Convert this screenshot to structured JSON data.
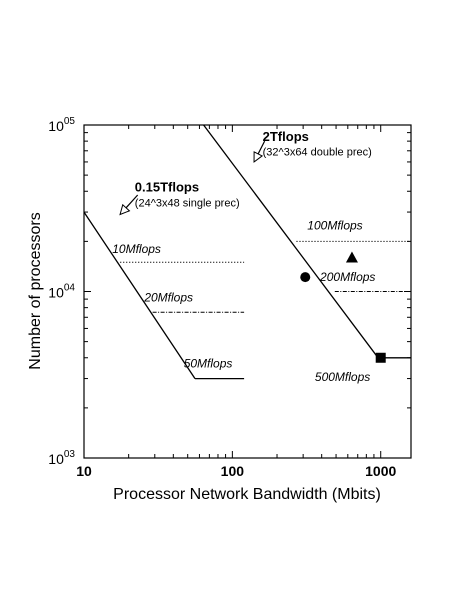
{
  "chart_data": {
    "type": "line",
    "x_scale": "log",
    "y_scale": "log",
    "xlabel": "Processor Network Bandwidth (Mbits)",
    "ylabel": "Number of processors",
    "xlim": [
      10,
      1600
    ],
    "ylim": [
      1000,
      100000
    ],
    "x_ticks": [
      {
        "value": 10,
        "label": "10"
      },
      {
        "value": 100,
        "label": "100"
      },
      {
        "value": 1000,
        "label": "1000"
      }
    ],
    "y_ticks": [
      {
        "value": 1000,
        "base": "10",
        "exp": "03"
      },
      {
        "value": 10000,
        "base": "10",
        "exp": "04"
      },
      {
        "value": 100000,
        "base": "10",
        "exp": "05"
      }
    ],
    "series": [
      {
        "points": [
          [
            10,
            30000
          ],
          [
            56,
            3000
          ]
        ],
        "style": "solid"
      },
      {
        "points": [
          [
            56,
            3000
          ],
          [
            120,
            3000
          ]
        ],
        "style": "solid"
      },
      {
        "points": [
          [
            17.5,
            15000
          ],
          [
            120,
            15000
          ]
        ],
        "style": "dotted"
      },
      {
        "points": [
          [
            29,
            7500
          ],
          [
            120,
            7500
          ]
        ],
        "style": "dashdot"
      },
      {
        "points": [
          [
            64,
            100000
          ],
          [
            960,
            4000
          ]
        ],
        "style": "solid"
      },
      {
        "points": [
          [
            960,
            4000
          ],
          [
            1600,
            4000
          ]
        ],
        "style": "solid"
      },
      {
        "points": [
          [
            270,
            20000
          ],
          [
            1600,
            20000
          ]
        ],
        "style": "dotted"
      },
      {
        "points": [
          [
            490,
            10000
          ],
          [
            1600,
            10000
          ]
        ],
        "style": "dashdot"
      }
    ],
    "markers": [
      {
        "shape": "circle",
        "x": 310,
        "y": 12200
      },
      {
        "shape": "triangle",
        "x": 640,
        "y": 16000
      },
      {
        "shape": "square",
        "x": 1000,
        "y": 4000
      }
    ],
    "arrows": [
      {
        "from": [
          23,
          38000
        ],
        "to": [
          17.5,
          29000
        ]
      },
      {
        "from": [
          165,
          80000
        ],
        "to": [
          140,
          60000
        ]
      }
    ],
    "annotations": [
      {
        "text": "0.15Tflops",
        "x": 22,
        "y": 40000,
        "style": "bold"
      },
      {
        "text": "(24^3x48 single prec)",
        "x": 22,
        "y": 32500,
        "style": "small"
      },
      {
        "text": "2Tflops",
        "x": 160,
        "y": 80000,
        "style": "bold"
      },
      {
        "text": "(32^3x64 double prec)",
        "x": 160,
        "y": 65500,
        "style": "small"
      },
      {
        "text": "10Mflops",
        "x": 15.5,
        "y": 17000,
        "style": "italic"
      },
      {
        "text": "20Mflops",
        "x": 25.5,
        "y": 8700,
        "style": "italic"
      },
      {
        "text": "50Mflops",
        "x": 47,
        "y": 3500,
        "style": "italic"
      },
      {
        "text": "100Mflops",
        "x": 320,
        "y": 23500,
        "style": "italic"
      },
      {
        "text": "200Mflops",
        "x": 390,
        "y": 11600,
        "style": "italic"
      },
      {
        "text": "500Mflops",
        "x": 360,
        "y": 2900,
        "style": "italic"
      }
    ]
  }
}
